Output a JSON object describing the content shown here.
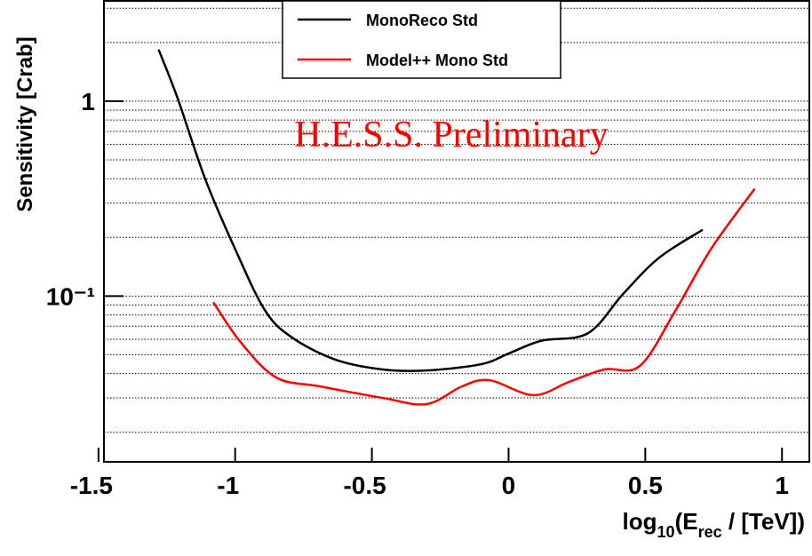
{
  "chart_data": {
    "type": "line",
    "y_label": "Sensitivity [Crab]",
    "x_label_parts": [
      "log",
      "10",
      "(E",
      "rec",
      " / [TeV])"
    ],
    "annotation": "H.E.S.S. Preliminary",
    "log_y": true,
    "xlim": [
      -1.48,
      1.1
    ],
    "ylim": [
      0.0141,
      3.27
    ],
    "xticks": [
      -1.5,
      -1,
      -0.5,
      0,
      0.5,
      1
    ],
    "yticks": [
      {
        "value": 0.1,
        "label": "10⁻¹"
      },
      1
    ],
    "grid_values": [
      0.02,
      0.03,
      0.04,
      0.05,
      0.06,
      0.07,
      0.08,
      0.09,
      0.2,
      0.3,
      0.4,
      0.5,
      0.6,
      0.7,
      0.8,
      0.9,
      2,
      3
    ],
    "legend": "top-center",
    "series": [
      {
        "name": "MonoReco Std",
        "color": "#000000",
        "x": [
          -1.28,
          -1.21,
          -1.11,
          -1.0,
          -0.89,
          -0.79,
          -0.63,
          -0.46,
          -0.3,
          -0.1,
          0,
          0.12,
          0.29,
          0.42,
          0.55,
          0.71
        ],
        "values": [
          1.84,
          1.03,
          0.4,
          0.174,
          0.084,
          0.061,
          0.047,
          0.042,
          0.0415,
          0.0447,
          0.0507,
          0.059,
          0.0644,
          0.103,
          0.157,
          0.219
        ]
      },
      {
        "name": "Model++ Mono Std",
        "color": "#ff0000",
        "x": [
          -1.08,
          -0.98,
          -0.85,
          -0.69,
          -0.46,
          -0.3,
          -0.17,
          -0.07,
          0.09,
          0.22,
          0.35,
          0.48,
          0.61,
          0.74,
          0.9
        ],
        "values": [
          0.093,
          0.058,
          0.0382,
          0.0344,
          0.03,
          0.0279,
          0.0344,
          0.037,
          0.031,
          0.0362,
          0.042,
          0.0438,
          0.084,
          0.174,
          0.355
        ]
      }
    ]
  }
}
